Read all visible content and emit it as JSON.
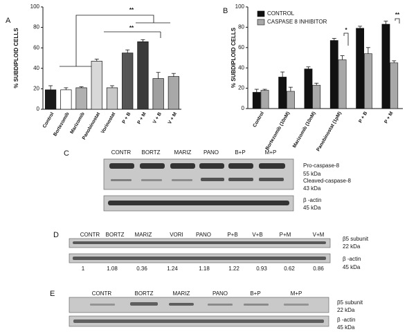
{
  "chart_data": [
    {
      "type": "bar",
      "label": "A",
      "ylabel": "% SUBDIPLOID CELLS",
      "categories": [
        "Control",
        "Bortezomib",
        "Marizomib",
        "Panobinostat",
        "Vorinostat",
        "P + B",
        "P + M",
        "V + B",
        "V + M"
      ],
      "values": [
        19,
        19,
        21,
        47,
        21,
        55,
        66,
        30,
        32
      ],
      "errors": [
        4,
        2,
        1,
        2,
        2,
        3,
        2,
        6,
        3
      ],
      "colors": [
        "#1a1a1a",
        "#ffffff",
        "#b0b0b0",
        "#d8d8d8",
        "#c8c8c8",
        "#555555",
        "#3a3a3a",
        "#a0a0a0",
        "#a8a8a8"
      ],
      "ylim": [
        0,
        100
      ],
      "yticks": [
        0,
        20,
        40,
        60,
        80,
        100
      ],
      "annotations": [
        "**",
        "**"
      ]
    },
    {
      "type": "grouped_bar",
      "label": "B",
      "ylabel": "% SUBDIPLOID CELLS",
      "categories": [
        "Control",
        "Bortezomib (10nM)",
        "Marizomib (10nM)",
        "Panobinostat (1pM)",
        "P + B",
        "P + M"
      ],
      "series": [
        {
          "name": "CONTROL",
          "color": "#111111",
          "values": [
            16,
            31,
            39,
            67,
            79,
            83
          ],
          "errors": [
            3,
            5,
            2,
            2,
            2,
            3
          ]
        },
        {
          "name": "CASPASE 8 INHIBITOR",
          "color": "#a8a8a8",
          "values": [
            18,
            17,
            23,
            48,
            54,
            45
          ],
          "errors": [
            1,
            4,
            2,
            4,
            6,
            2
          ]
        }
      ],
      "ylim": [
        0,
        100
      ],
      "yticks": [
        0,
        20,
        40,
        60,
        80,
        100
      ],
      "legend": "upper left",
      "annotations": [
        "*",
        "**"
      ]
    }
  ],
  "blots": [
    {
      "label": "C",
      "lanes": [
        "CONTR",
        "BORTZ",
        "MARIZ",
        "PANO",
        "B+P",
        "M+P"
      ],
      "rows": [
        "Pro-caspase-8",
        "55 kDa",
        "Cleaved-caspase-8",
        "43 kDa",
        "β -actin",
        "45 kDa"
      ]
    },
    {
      "label": "D",
      "lanes": [
        "CONTR",
        "BORTZ",
        "MARIZ",
        "VORI",
        "PANO",
        "P+B",
        "V+B",
        "P+M",
        "V+M"
      ],
      "rows": [
        "β5 subunit",
        "22 kDa",
        "β -actin",
        "45 kDa"
      ],
      "ratios": [
        "1",
        "1.08",
        "0.36",
        "1.24",
        "1.18",
        "1.22",
        "0.93",
        "0.62",
        "0.86"
      ]
    },
    {
      "label": "E",
      "lanes": [
        "CONTR",
        "BORTZ",
        "MARIZ",
        "PANO",
        "B+P",
        "M+P"
      ],
      "rows": [
        "β5 subunit",
        "22 kDa",
        "β -actin",
        "45 kDa"
      ]
    }
  ]
}
